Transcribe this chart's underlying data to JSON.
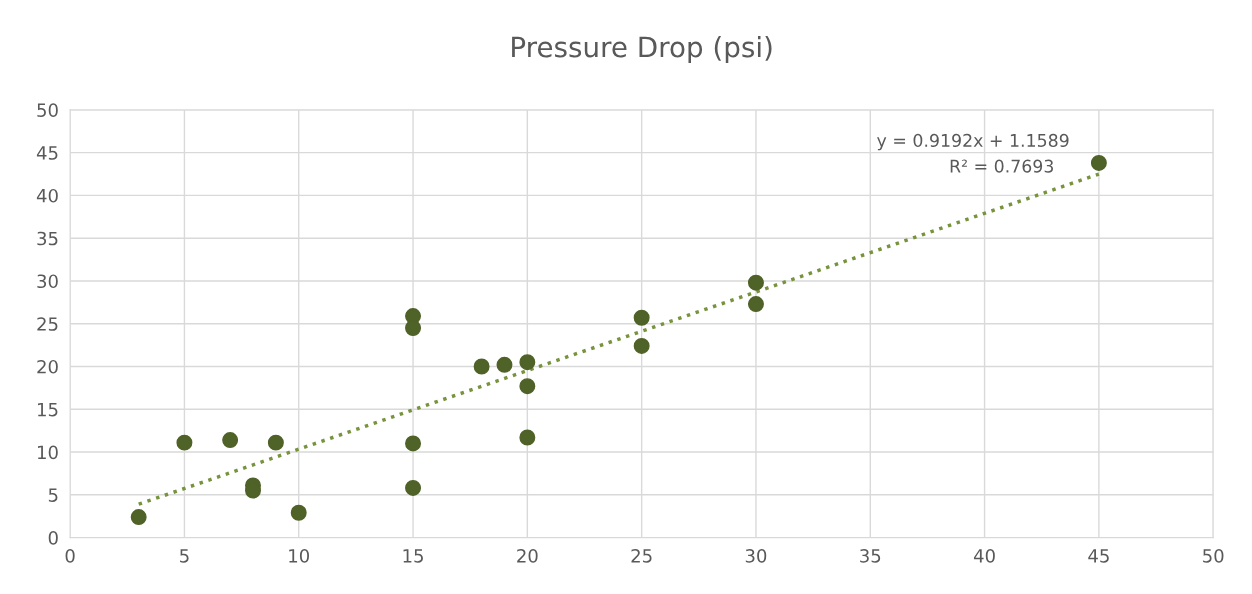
{
  "chart_data": {
    "type": "scatter",
    "title": "Pressure Drop (psi)",
    "series": [
      {
        "color": "#4f6228",
        "marker": "circle",
        "x": [
          3,
          5,
          7,
          9,
          8,
          8,
          10,
          15,
          15,
          15,
          15,
          18,
          19,
          20,
          20,
          20,
          25,
          25,
          30,
          30,
          45
        ],
        "values": [
          2.4,
          11.1,
          11.4,
          11.1,
          6.1,
          5.5,
          2.9,
          25.9,
          24.5,
          11.0,
          5.8,
          20.0,
          20.2,
          20.5,
          17.7,
          11.7,
          25.7,
          22.4,
          29.8,
          27.3,
          43.8
        ]
      },
      {
        "type": "line",
        "color": "#77933c",
        "line_style": "dotted",
        "marker": "none",
        "x": [
          3,
          45
        ],
        "values": [
          3.9,
          42.5
        ]
      }
    ],
    "annotations": [
      "y = 0.9192x + 1.1589",
      "R² = 0.7693"
    ],
    "xlim": [
      0,
      50
    ],
    "xticks": [
      0,
      5,
      10,
      15,
      20,
      25,
      30,
      35,
      40,
      45,
      50
    ],
    "ylim": [
      0,
      50
    ],
    "yticks": [
      0,
      5,
      10,
      15,
      20,
      25,
      30,
      35,
      40,
      45,
      50
    ],
    "grid": true
  }
}
